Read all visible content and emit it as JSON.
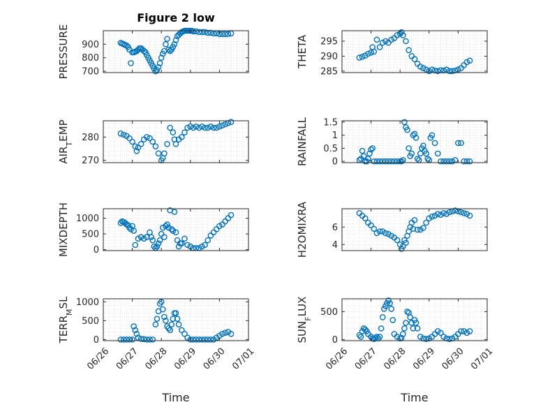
{
  "figure_title": "Figure 2 low",
  "x_axis_label": "Time",
  "x_tick_labels": [
    "06/26",
    "06/27",
    "06/28",
    "06/29",
    "06/30",
    "07/01"
  ],
  "colors": {
    "marker": "#0072BD",
    "axis": "#262626",
    "grid": "#d0d0d0",
    "background": "#ffffff"
  },
  "chart_data": [
    {
      "type": "scatter",
      "ylabel": "PRESSURE",
      "ylim": [
        690,
        1000
      ],
      "yticks": [
        700,
        800,
        900
      ],
      "grid": true,
      "x": [
        26.6,
        26.65,
        26.7,
        26.75,
        26.8,
        26.85,
        26.9,
        26.95,
        27.0,
        27.05,
        27.1,
        27.15,
        27.2,
        27.25,
        27.3,
        27.35,
        27.4,
        27.45,
        27.5,
        27.55,
        27.6,
        27.65,
        27.7,
        27.75,
        27.8,
        27.85,
        27.9,
        27.95,
        28.0,
        28.05,
        28.1,
        28.15,
        28.2,
        28.25,
        28.3,
        28.35,
        28.4,
        28.45,
        28.5,
        28.55,
        28.6,
        28.65,
        28.7,
        28.75,
        28.8,
        28.85,
        28.9,
        28.95,
        29.0,
        29.05,
        29.1,
        29.2,
        29.3,
        29.4,
        29.5,
        29.6,
        29.7,
        29.8,
        29.9,
        30.0,
        30.1,
        30.2,
        30.3,
        30.4
      ],
      "y": [
        910,
        905,
        900,
        895,
        890,
        880,
        860,
        760,
        840,
        840,
        845,
        850,
        860,
        870,
        870,
        860,
        850,
        840,
        820,
        800,
        780,
        760,
        740,
        720,
        700,
        710,
        730,
        760,
        800,
        830,
        850,
        900,
        940,
        860,
        850,
        860,
        880,
        900,
        930,
        960,
        970,
        980,
        990,
        995,
        1000,
        1000,
        1000,
        1000,
        1000,
        1000,
        995,
        995,
        990,
        990,
        990,
        985,
        985,
        980,
        980,
        975,
        975,
        975,
        975,
        980
      ]
    },
    {
      "type": "scatter",
      "ylabel": "THETA",
      "ylim": [
        284.5,
        298.5
      ],
      "yticks": [
        285,
        290,
        295
      ],
      "grid": true,
      "x": [
        26.6,
        26.7,
        26.8,
        26.9,
        27.0,
        27.05,
        27.1,
        27.2,
        27.3,
        27.4,
        27.5,
        27.6,
        27.7,
        27.8,
        27.9,
        28.0,
        28.05,
        28.1,
        28.2,
        28.3,
        28.4,
        28.5,
        28.6,
        28.7,
        28.8,
        28.9,
        29.0,
        29.1,
        29.2,
        29.3,
        29.4,
        29.5,
        29.6,
        29.7,
        29.8,
        29.9,
        30.0,
        30.1,
        30.2,
        30.3,
        30.4
      ],
      "y": [
        289.5,
        289.8,
        290.2,
        290.8,
        291.2,
        293,
        291.5,
        295.5,
        293,
        294.5,
        295,
        294.5,
        295.5,
        296,
        297,
        297.5,
        298,
        297,
        295,
        292,
        290,
        289,
        287.5,
        286.5,
        286,
        285.5,
        285,
        285.5,
        285.2,
        285,
        285.3,
        285.2,
        285.5,
        285,
        285,
        285.2,
        285.5,
        286,
        287,
        288,
        288.5
      ]
    },
    {
      "type": "scatter",
      "ylabel": "AIR_TEMP",
      "ylim": [
        269,
        287
      ],
      "yticks": [
        270,
        280
      ],
      "grid": true,
      "x": [
        26.6,
        26.7,
        26.8,
        26.9,
        27.0,
        27.1,
        27.15,
        27.2,
        27.3,
        27.4,
        27.5,
        27.6,
        27.7,
        27.8,
        27.9,
        28.0,
        28.05,
        28.1,
        28.2,
        28.3,
        28.4,
        28.45,
        28.5,
        28.6,
        28.7,
        28.8,
        28.9,
        29.0,
        29.1,
        29.2,
        29.3,
        29.4,
        29.5,
        29.6,
        29.7,
        29.8,
        29.9,
        30.0,
        30.1,
        30.2,
        30.3,
        30.4
      ],
      "y": [
        281.5,
        281,
        280.5,
        279.5,
        278,
        276,
        274,
        275.5,
        277,
        279,
        280,
        279.5,
        278,
        276,
        273,
        270,
        271,
        273,
        277,
        284,
        282,
        279,
        277,
        279,
        280,
        282,
        284,
        284.5,
        284,
        284.5,
        284,
        284.5,
        284,
        284,
        284.5,
        284,
        284,
        284.5,
        285,
        285.5,
        286,
        286.5
      ]
    },
    {
      "type": "scatter",
      "ylabel": "RAINFALL",
      "ylim": [
        -0.05,
        1.55
      ],
      "yticks": [
        0,
        0.5,
        1,
        1.5
      ],
      "ytick_labels": [
        "0",
        "0.5",
        "1",
        "1.5"
      ],
      "grid": true,
      "x": [
        26.6,
        26.65,
        26.7,
        26.75,
        26.8,
        26.85,
        26.9,
        26.95,
        27.0,
        27.05,
        27.1,
        27.2,
        27.3,
        27.4,
        27.5,
        27.6,
        27.7,
        27.8,
        27.9,
        28.0,
        28.05,
        28.1,
        28.15,
        28.2,
        28.25,
        28.3,
        28.35,
        28.4,
        28.45,
        28.5,
        28.55,
        28.6,
        28.65,
        28.7,
        28.75,
        28.8,
        28.85,
        28.9,
        28.95,
        29.0,
        29.05,
        29.1,
        29.2,
        29.3,
        29.4,
        29.5,
        29.6,
        29.7,
        29.8,
        29.9,
        30.0,
        30.1,
        30.2,
        30.3,
        30.4
      ],
      "y": [
        0.05,
        0.1,
        0.4,
        0.2,
        0,
        0,
        0.1,
        0.3,
        0.45,
        0.5,
        0,
        0,
        0,
        0,
        0,
        0,
        0,
        0,
        0,
        0,
        0,
        0.05,
        1.5,
        1.3,
        1.2,
        0.5,
        0.2,
        0.3,
        1,
        1.05,
        0.9,
        0.1,
        0.05,
        0.3,
        0.5,
        0.6,
        0.4,
        0.3,
        0.1,
        0.05,
        0.9,
        1.0,
        0.7,
        0.3,
        0,
        0,
        0,
        0,
        0,
        0.05,
        0.7,
        0.7,
        0,
        0,
        0
      ]
    },
    {
      "type": "scatter",
      "ylabel": "MIXDEPTH",
      "ylim": [
        -30,
        1300
      ],
      "yticks": [
        0,
        500,
        1000
      ],
      "grid": true,
      "x": [
        26.6,
        26.65,
        26.7,
        26.75,
        26.8,
        26.85,
        26.9,
        26.95,
        27.0,
        27.05,
        27.1,
        27.2,
        27.3,
        27.4,
        27.5,
        27.6,
        27.65,
        27.7,
        27.75,
        27.8,
        27.85,
        27.9,
        27.95,
        28.0,
        28.05,
        28.1,
        28.15,
        28.2,
        28.25,
        28.3,
        28.35,
        28.4,
        28.45,
        28.5,
        28.55,
        28.6,
        28.65,
        28.7,
        28.8,
        28.9,
        29.0,
        29.1,
        29.2,
        29.3,
        29.4,
        29.5,
        29.6,
        29.7,
        29.8,
        29.9,
        30.0,
        30.1,
        30.2,
        30.3,
        30.4
      ],
      "y": [
        850,
        900,
        880,
        850,
        800,
        780,
        700,
        650,
        750,
        600,
        150,
        350,
        400,
        350,
        400,
        550,
        400,
        300,
        100,
        50,
        100,
        200,
        300,
        500,
        700,
        400,
        750,
        800,
        700,
        1250,
        650,
        600,
        1200,
        550,
        300,
        100,
        200,
        200,
        350,
        150,
        100,
        50,
        50,
        50,
        100,
        150,
        300,
        450,
        550,
        650,
        750,
        800,
        900,
        1000,
        1100
      ]
    },
    {
      "type": "scatter",
      "ylabel": "H2OMIXRA",
      "ylim": [
        3.3,
        8.1
      ],
      "yticks": [
        4,
        6
      ],
      "grid": true,
      "x": [
        26.6,
        26.7,
        26.8,
        26.9,
        27.0,
        27.1,
        27.2,
        27.3,
        27.4,
        27.5,
        27.6,
        27.7,
        27.8,
        27.9,
        28.0,
        28.05,
        28.1,
        28.15,
        28.2,
        28.25,
        28.3,
        28.35,
        28.4,
        28.45,
        28.5,
        28.6,
        28.7,
        28.8,
        28.9,
        29.0,
        29.1,
        29.2,
        29.3,
        29.4,
        29.5,
        29.6,
        29.7,
        29.8,
        29.9,
        30.0,
        30.1,
        30.2,
        30.3,
        30.4
      ],
      "y": [
        7.6,
        7.3,
        7,
        6.5,
        6.2,
        5.8,
        5.3,
        5.5,
        5.5,
        5.3,
        5.2,
        5,
        4.8,
        4.5,
        4,
        3.5,
        3.8,
        4.5,
        4.2,
        5,
        5.5,
        6,
        6.5,
        5.8,
        6.8,
        5.7,
        5.7,
        5.9,
        6.5,
        7.0,
        7.2,
        7.3,
        7.5,
        7.4,
        7.6,
        7.5,
        7.7,
        7.8,
        7.9,
        7.8,
        7.7,
        7.6,
        7.5,
        7.3
      ]
    },
    {
      "type": "scatter",
      "ylabel": "TERR_MSL",
      "ylim": [
        -30,
        1080
      ],
      "yticks": [
        0,
        500,
        1000
      ],
      "grid": true,
      "x": [
        26.6,
        26.7,
        26.8,
        26.9,
        27.0,
        27.05,
        27.1,
        27.15,
        27.2,
        27.3,
        27.4,
        27.5,
        27.6,
        27.7,
        27.8,
        27.85,
        27.9,
        27.95,
        28.0,
        28.05,
        28.1,
        28.15,
        28.2,
        28.25,
        28.3,
        28.35,
        28.4,
        28.45,
        28.5,
        28.55,
        28.6,
        28.7,
        28.8,
        28.9,
        29.0,
        29.1,
        29.2,
        29.3,
        29.4,
        29.5,
        29.6,
        29.7,
        29.8,
        29.9,
        30.0,
        30.1,
        30.2,
        30.3,
        30.4
      ],
      "y": [
        0,
        0,
        0,
        0,
        0,
        350,
        250,
        150,
        50,
        20,
        10,
        0,
        0,
        0,
        400,
        550,
        750,
        950,
        1000,
        800,
        600,
        500,
        350,
        300,
        250,
        400,
        550,
        700,
        700,
        550,
        400,
        250,
        150,
        50,
        0,
        0,
        0,
        0,
        0,
        0,
        0,
        0,
        0,
        50,
        100,
        150,
        180,
        200,
        150
      ]
    },
    {
      "type": "scatter",
      "ylabel": "SUN_FLUX",
      "ylim": [
        -20,
        730
      ],
      "yticks": [
        0,
        500
      ],
      "grid": true,
      "x": [
        26.6,
        26.65,
        26.7,
        26.75,
        26.8,
        26.85,
        26.9,
        27.0,
        27.05,
        27.1,
        27.15,
        27.2,
        27.25,
        27.3,
        27.35,
        27.4,
        27.45,
        27.5,
        27.55,
        27.6,
        27.65,
        27.7,
        27.75,
        27.8,
        27.9,
        28.0,
        28.05,
        28.1,
        28.15,
        28.2,
        28.25,
        28.3,
        28.35,
        28.4,
        28.45,
        28.5,
        28.55,
        28.6,
        28.7,
        28.8,
        28.9,
        29.0,
        29.1,
        29.2,
        29.3,
        29.4,
        29.5,
        29.6,
        29.7,
        29.8,
        29.9,
        30.0,
        30.1,
        30.2,
        30.3,
        30.4
      ],
      "y": [
        80,
        50,
        150,
        200,
        180,
        150,
        100,
        50,
        20,
        10,
        30,
        50,
        20,
        50,
        200,
        400,
        550,
        600,
        650,
        700,
        650,
        550,
        350,
        100,
        50,
        20,
        30,
        100,
        200,
        300,
        500,
        480,
        400,
        300,
        200,
        350,
        300,
        200,
        50,
        20,
        10,
        20,
        50,
        100,
        150,
        120,
        50,
        20,
        10,
        20,
        50,
        100,
        150,
        150,
        120,
        150
      ]
    }
  ]
}
